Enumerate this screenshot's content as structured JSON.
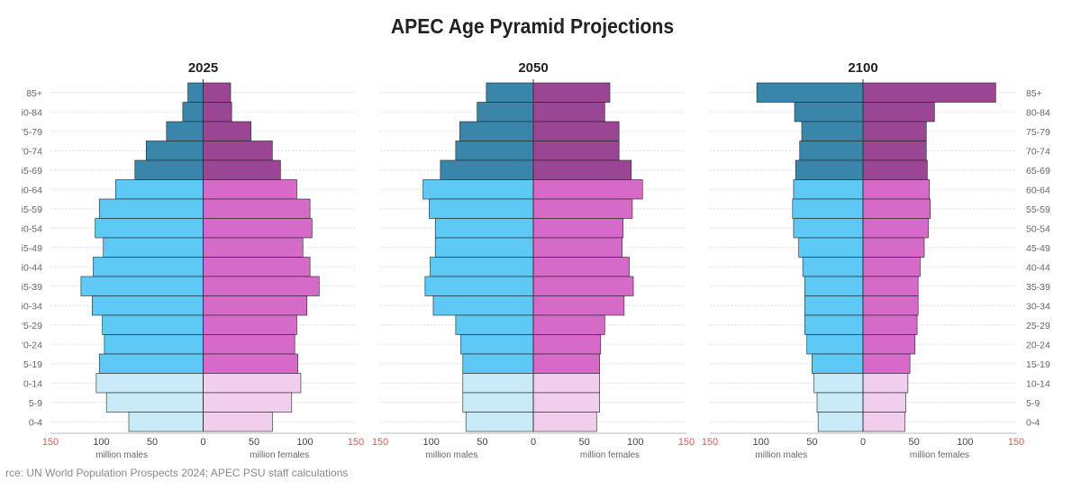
{
  "title": "APEC Age Pyramid Projections",
  "source": "rce: UN World Population Prospects 2024; APEC PSU staff calculations",
  "colors": {
    "male_child": "#c9ebf7",
    "male_working": "#5ec9f4",
    "male_elder": "#3a86ab",
    "female_child": "#f1cdee",
    "female_working": "#d66ac8",
    "female_elder": "#9a4695",
    "tick_red": "#e05555",
    "grid": "#dddddd",
    "text_gray": "#666666"
  },
  "chart_data": [
    {
      "type": "bar",
      "orientation": "horizontal-pyramid",
      "title": "2025",
      "left_age_labels": [
        "85+",
        "i0-84",
        "'5-79",
        "'0-74",
        "i5-69",
        "i0-64",
        "i5-59",
        "i0-54",
        "i5-49",
        "i0-44",
        "i5-39",
        "i0-34",
        "'5-29",
        "'0-24",
        "5-19",
        "0-14",
        "5-9",
        "0-4"
      ],
      "right_age_labels": [],
      "xlabel_left": "million males",
      "xlabel_right": "million females",
      "xlim": [
        -150,
        150
      ],
      "x_ticks": [
        "150",
        "100",
        "50",
        "0",
        "50",
        "100",
        "150"
      ],
      "series": [
        {
          "name": "million males",
          "values": [
            15,
            20,
            36,
            56,
            67,
            86,
            102,
            106,
            98,
            108,
            120,
            109,
            99,
            97,
            102,
            105,
            95,
            73
          ]
        },
        {
          "name": "million females",
          "values": [
            27,
            28,
            47,
            68,
            76,
            92,
            105,
            107,
            98,
            105,
            114,
            102,
            92,
            90,
            93,
            96,
            87,
            68
          ]
        }
      ]
    },
    {
      "type": "bar",
      "orientation": "horizontal-pyramid",
      "title": "2050",
      "left_age_labels": [],
      "right_age_labels": [],
      "xlabel_left": "million males",
      "xlabel_right": "million females",
      "xlim": [
        -150,
        150
      ],
      "x_ticks": [
        "150",
        "100",
        "50",
        "0",
        "50",
        "100",
        "150"
      ],
      "series": [
        {
          "name": "million males",
          "values": [
            46,
            55,
            72,
            76,
            91,
            108,
            102,
            96,
            96,
            101,
            106,
            98,
            76,
            71,
            69,
            69,
            69,
            66
          ]
        },
        {
          "name": "million females",
          "values": [
            75,
            70,
            84,
            84,
            96,
            107,
            97,
            88,
            87,
            94,
            98,
            89,
            70,
            66,
            65,
            65,
            65,
            62
          ]
        }
      ]
    },
    {
      "type": "bar",
      "orientation": "horizontal-pyramid",
      "title": "2100",
      "left_age_labels": [],
      "right_age_labels": [
        "85+",
        "80-84",
        "75-79",
        "70-74",
        "65-69",
        "60-64",
        "55-59",
        "50-54",
        "45-49",
        "40-44",
        "35-39",
        "30-34",
        "25-29",
        "20-24",
        "15-19",
        "10-14",
        "5-9",
        "0-4"
      ],
      "xlabel_left": "million males",
      "xlabel_right": "million females",
      "xlim": [
        -150,
        150
      ],
      "x_ticks": [
        "150",
        "100",
        "50",
        "0",
        "50",
        "100",
        "150"
      ],
      "series": [
        {
          "name": "million males",
          "values": [
            104,
            67,
            60,
            62,
            66,
            68,
            69,
            68,
            63,
            59,
            57,
            57,
            57,
            55,
            50,
            48,
            45,
            44
          ]
        },
        {
          "name": "million females",
          "values": [
            130,
            70,
            62,
            62,
            63,
            65,
            66,
            64,
            60,
            56,
            54,
            54,
            53,
            51,
            46,
            44,
            42,
            41
          ]
        }
      ]
    }
  ]
}
